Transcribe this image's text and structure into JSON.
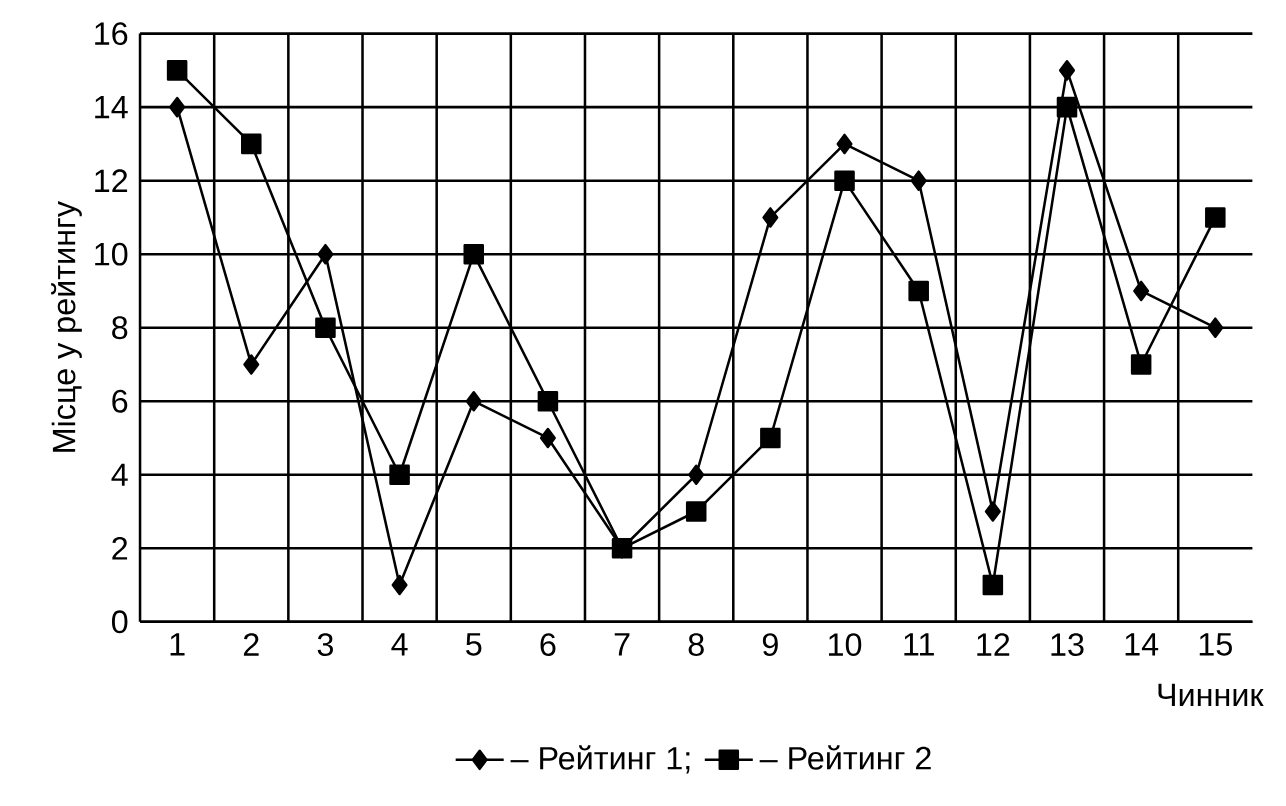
{
  "chart_data": {
    "type": "line",
    "ylabel": "Місце у рейтингу",
    "xlabel": "Чинник",
    "categories": [
      "1",
      "2",
      "3",
      "4",
      "5",
      "6",
      "7",
      "8",
      "9",
      "10",
      "11",
      "12",
      "13",
      "14",
      "15"
    ],
    "series": [
      {
        "name": "– Рейтинг 1;",
        "color": "#000000",
        "marker": "diamond",
        "values": [
          14,
          7,
          10,
          1,
          6,
          5,
          2,
          4,
          11,
          13,
          12,
          3,
          15,
          9,
          8
        ]
      },
      {
        "name": "– Рейтинг 2",
        "color": "#000000",
        "marker": "square",
        "values": [
          15,
          13,
          8,
          4,
          10,
          6,
          2,
          3,
          5,
          12,
          9,
          1,
          14,
          7,
          11
        ]
      }
    ],
    "ylim": [
      0,
      16
    ],
    "yticks": [
      0,
      2,
      4,
      6,
      8,
      10,
      12,
      14,
      16
    ],
    "grid": true,
    "legend": "bottom",
    "line_style": "solid"
  }
}
